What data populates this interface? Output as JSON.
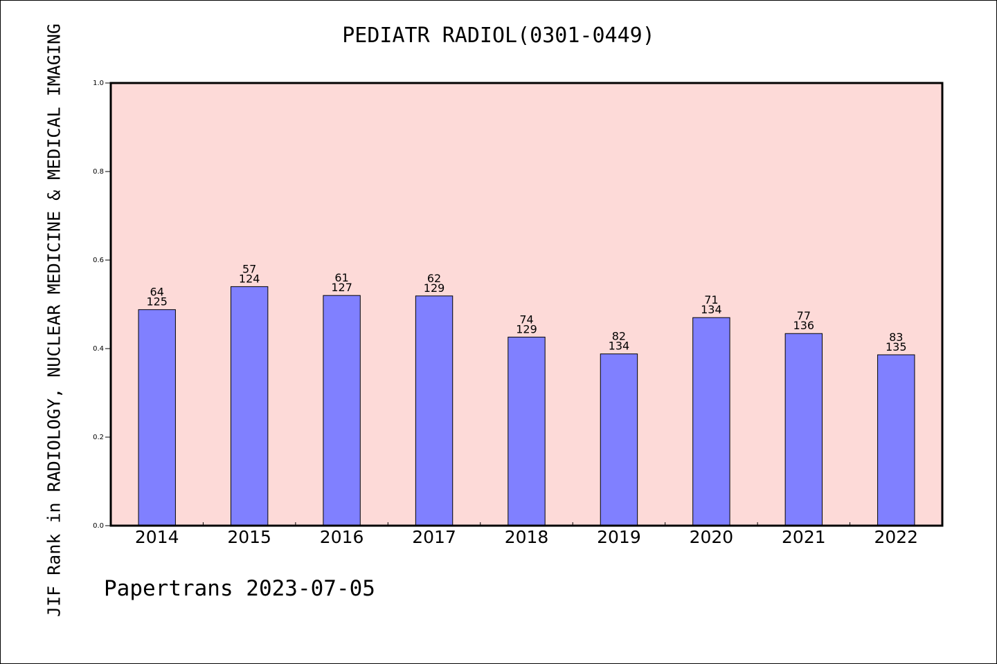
{
  "chart_data": {
    "type": "bar",
    "title": "PEDIATR RADIOL(0301-0449)",
    "ylabel": "JIF Rank in RADIOLOGY, NUCLEAR MEDICINE & MEDICAL IMAGING",
    "xlabel": "",
    "categories": [
      "2014",
      "2015",
      "2016",
      "2017",
      "2018",
      "2019",
      "2020",
      "2021",
      "2022"
    ],
    "values": [
      0.488,
      0.54,
      0.52,
      0.519,
      0.426,
      0.388,
      0.47,
      0.434,
      0.386
    ],
    "rank_labels": [
      "64",
      "57",
      "61",
      "62",
      "74",
      "82",
      "71",
      "77",
      "83"
    ],
    "total_labels": [
      "125",
      "124",
      "127",
      "129",
      "129",
      "134",
      "134",
      "136",
      "135"
    ],
    "ylim": [
      0,
      1.0
    ],
    "yticks": [
      "0.0",
      "0.2",
      "0.4",
      "0.6",
      "0.8",
      "1.0"
    ],
    "grid": false,
    "colors": {
      "bar": "#8080ff",
      "plot_background": "#fddad8",
      "axis": "#000000"
    }
  },
  "footer": "Papertrans 2023-07-05"
}
